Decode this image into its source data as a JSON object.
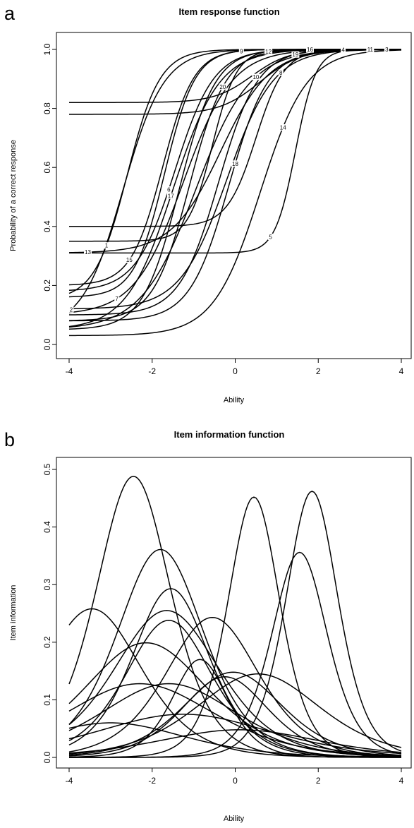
{
  "chart_data": [
    {
      "type": "line",
      "panel_letter": "a",
      "title": "Item response function",
      "xlabel": "Ability",
      "ylabel": "Probability of a correct response",
      "xlim": [
        -4,
        4
      ],
      "ylim": [
        0,
        1
      ],
      "xticks": [
        -4,
        -2,
        0,
        2,
        4
      ],
      "yticks": [
        "0.0",
        "0.2",
        "0.4",
        "0.6",
        "0.8",
        "1.0"
      ],
      "grid": false,
      "legend": "none",
      "model": "3PL",
      "items": [
        {
          "label": "1",
          "a": 1.5,
          "b": -2.6,
          "c": 0.15,
          "label_x": -3.1
        },
        {
          "label": "2",
          "a": 1.2,
          "b": -2.7,
          "c": 0.05,
          "label_x": -3.95
        },
        {
          "label": "3",
          "a": 1.2,
          "b": 0.6,
          "c": 0.78,
          "label_x": 3.65
        },
        {
          "label": "4",
          "a": 1.3,
          "b": 0.4,
          "c": 0.82,
          "label_x": 2.6
        },
        {
          "label": "5",
          "a": 2.4,
          "b": 1.45,
          "c": 0.31,
          "label_x": 0.85
        },
        {
          "label": "6",
          "a": 1.25,
          "b": -1.45,
          "c": 0.18,
          "label_x": -1.6
        },
        {
          "label": "7",
          "a": 1.0,
          "b": -1.25,
          "c": 0.1,
          "label_x": -2.85
        },
        {
          "label": "8",
          "a": 1.05,
          "b": -0.2,
          "c": 0.12,
          "label_x": 1.1
        },
        {
          "label": "9",
          "a": 1.6,
          "b": -1.7,
          "c": 0.16,
          "label_x": 0.15
        },
        {
          "label": "10",
          "a": 0.9,
          "b": -0.95,
          "c": 0.05,
          "label_x": 0.5
        },
        {
          "label": "11",
          "a": 1.7,
          "b": 0.5,
          "c": 0.4,
          "label_x": 3.25
        },
        {
          "label": "12",
          "a": 1.35,
          "b": -1.35,
          "c": 0.05,
          "label_x": 0.8
        },
        {
          "label": "13",
          "a": 1.0,
          "b": -0.35,
          "c": 0.31,
          "label_x": -3.55
        },
        {
          "label": "14",
          "a": 1.05,
          "b": 0.6,
          "c": 0.03,
          "label_x": 1.15
        },
        {
          "label": "15",
          "a": 1.55,
          "b": -1.75,
          "c": 0.2,
          "label_x": -2.55
        },
        {
          "label": "16",
          "a": 2.0,
          "b": -0.55,
          "c": 0.35,
          "label_x": 1.8
        },
        {
          "label": "17",
          "a": 1.05,
          "b": -1.5,
          "c": 0.05,
          "label_x": -1.55
        },
        {
          "label": "18",
          "a": 1.25,
          "b": -0.15,
          "c": 0.08,
          "label_x": 0.0
        },
        {
          "label": "19",
          "a": 1.25,
          "b": -0.4,
          "c": 0.1,
          "label_x": 1.45
        },
        {
          "label": "20",
          "a": 1.35,
          "b": -1.1,
          "c": 0.08,
          "label_x": -0.3
        }
      ]
    },
    {
      "type": "line",
      "panel_letter": "b",
      "title": "Item information function",
      "xlabel": "Ability",
      "ylabel": "Item information",
      "xlim": [
        -4,
        4
      ],
      "ylim": [
        0,
        0.5
      ],
      "xticks": [
        -4,
        -2,
        0,
        2,
        4
      ],
      "yticks": [
        "0.0",
        "0.1",
        "0.2",
        "0.3",
        "0.4",
        "0.5"
      ],
      "grid": false,
      "legend": "none",
      "curves": [
        {
          "peak": 0.488,
          "at": -2.45,
          "width": 0.6
        },
        {
          "peak": 0.258,
          "at": -3.45,
          "width": 0.8
        },
        {
          "peak": 0.361,
          "at": -1.8,
          "width": 0.7
        },
        {
          "peak": 0.293,
          "at": -1.55,
          "width": 0.62
        },
        {
          "peak": 0.255,
          "at": -1.65,
          "width": 0.85
        },
        {
          "peak": 0.238,
          "at": -1.6,
          "width": 0.7
        },
        {
          "peak": 0.199,
          "at": -2.15,
          "width": 1.0
        },
        {
          "peak": 0.243,
          "at": -0.55,
          "width": 0.75
        },
        {
          "peak": 0.452,
          "at": 0.45,
          "width": 0.42
        },
        {
          "peak": 0.462,
          "at": 1.85,
          "width": 0.42
        },
        {
          "peak": 0.356,
          "at": 1.55,
          "width": 0.45
        },
        {
          "peak": 0.128,
          "at": -2.3,
          "width": 1.2
        },
        {
          "peak": 0.128,
          "at": -1.6,
          "width": 1.1
        },
        {
          "peak": 0.17,
          "at": -0.85,
          "width": 0.45
        },
        {
          "peak": 0.148,
          "at": -0.05,
          "width": 0.8
        },
        {
          "peak": 0.145,
          "at": 0.55,
          "width": 1.0
        },
        {
          "peak": 0.14,
          "at": -0.25,
          "width": 0.7
        },
        {
          "peak": 0.075,
          "at": -1.25,
          "width": 1.4
        },
        {
          "peak": 0.048,
          "at": 0.1,
          "width": 1.3
        },
        {
          "peak": 0.06,
          "at": -3.0,
          "width": 1.2
        }
      ]
    }
  ]
}
